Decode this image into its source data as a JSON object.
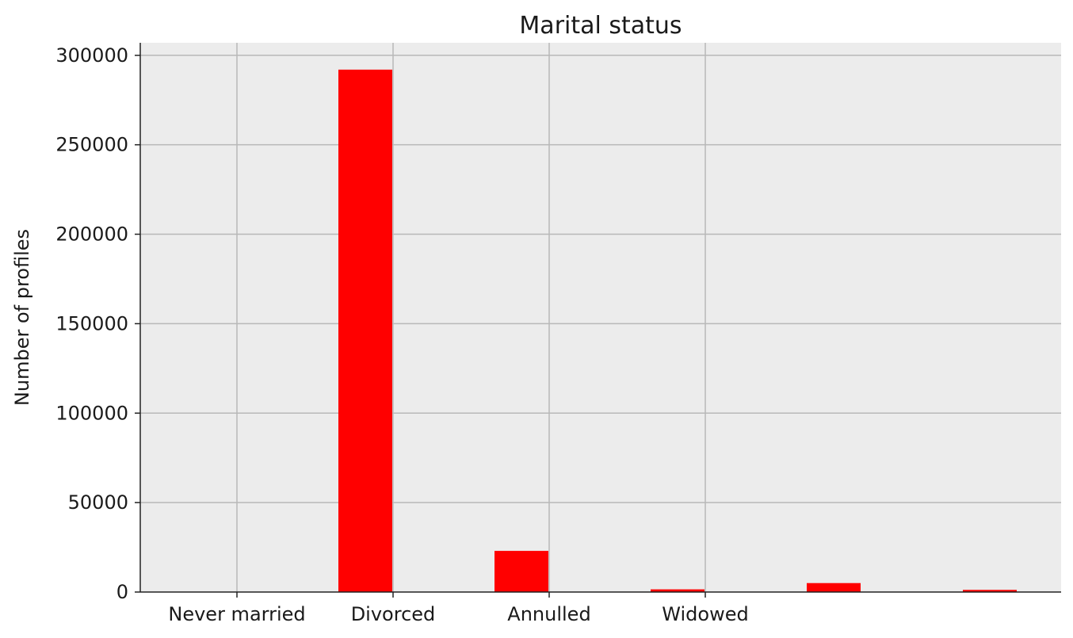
{
  "chart_data": {
    "type": "bar",
    "title": "Marital status",
    "xlabel": "",
    "ylabel": "Number of profiles",
    "ylim": [
      0,
      307000
    ],
    "yticks": [
      0,
      50000,
      100000,
      150000,
      200000,
      250000,
      300000
    ],
    "categories": [
      "Never married",
      "Divorced",
      "Annulled",
      "Widowed",
      "",
      ""
    ],
    "values": [
      0,
      292000,
      23000,
      1500,
      5000,
      1200
    ],
    "bar_color": "#ff0000",
    "plot_background": "#ececec",
    "grid": true,
    "legend": "none"
  }
}
